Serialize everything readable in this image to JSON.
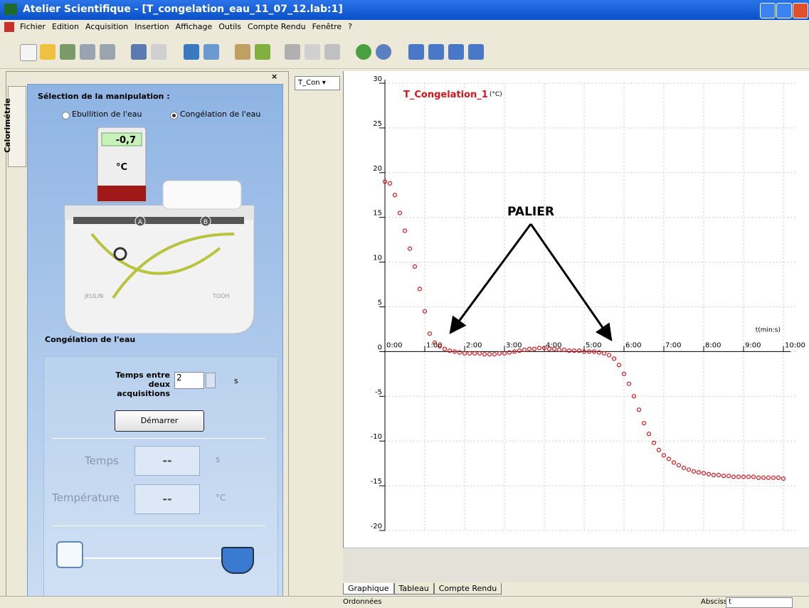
{
  "window": {
    "title": "Atelier Scientifique - [T_congelation_eau_11_07_12.lab:1]",
    "menu": [
      "Fichier",
      "Edition",
      "Acquisition",
      "Insertion",
      "Affichage",
      "Outils",
      "Compte Rendu",
      "Fenêtre",
      "?"
    ]
  },
  "left_panel": {
    "tab": "Calorimétrie",
    "heading": "Sélection de la manipulation :",
    "radios": [
      "Ebullition de l'eau",
      "Congélation de l'eau"
    ],
    "device": {
      "display": "-0,7",
      "unit": "°C",
      "port_a": "A",
      "port_b": "B",
      "brand": "JEULIN",
      "logo": "TOOH"
    },
    "section": "Congélation de l'eau",
    "interval_label": "Temps entre deux acquisitions",
    "interval_value": "2",
    "interval_unit": "s",
    "start_button": "Démarrer",
    "time_label": "Temps",
    "time_value": "--",
    "time_unit": "s",
    "temp_label": "Température",
    "temp_value": "--",
    "temp_unit": "°C"
  },
  "curve_selector": "T_Con",
  "chart_data": {
    "type": "scatter",
    "y_label": "(°C)",
    "x_label": "t(min:s)",
    "annotation": "PALIER",
    "x": [
      0,
      0.125,
      0.25,
      0.375,
      0.5,
      0.625,
      0.75,
      0.875,
      1,
      1.125,
      1.25,
      1.375,
      1.5,
      1.625,
      1.75,
      1.875,
      2,
      2.125,
      2.25,
      2.375,
      2.5,
      2.625,
      2.75,
      2.875,
      3,
      3.125,
      3.25,
      3.375,
      3.5,
      3.625,
      3.75,
      3.875,
      4,
      4.125,
      4.25,
      4.375,
      4.5,
      4.625,
      4.75,
      4.875,
      5,
      5.125,
      5.25,
      5.375,
      5.5,
      5.625,
      5.75,
      5.875,
      6,
      6.125,
      6.25,
      6.375,
      6.5,
      6.625,
      6.75,
      6.875,
      7,
      7.125,
      7.25,
      7.375,
      7.5,
      7.625,
      7.75,
      7.875,
      8,
      8.125,
      8.25,
      8.375,
      8.5,
      8.625,
      8.75,
      8.875,
      9,
      9.125,
      9.25,
      9.375,
      9.5,
      9.625,
      9.75,
      9.875,
      10
    ],
    "series": [
      {
        "name": "T_Congelation_1",
        "color": "#d8141c",
        "values": [
          19,
          18.8,
          17.5,
          15.5,
          13.5,
          11.5,
          9.5,
          7,
          4.5,
          2,
          1,
          0.6,
          0.3,
          0.1,
          0,
          -0.1,
          -0.2,
          -0.2,
          -0.2,
          -0.2,
          -0.3,
          -0.3,
          -0.3,
          -0.2,
          -0.2,
          -0.1,
          0,
          0.1,
          0.2,
          0.3,
          0.3,
          0.4,
          0.4,
          0.3,
          0.3,
          0.2,
          0.2,
          0.1,
          0.1,
          0.1,
          0,
          0,
          0,
          -0.1,
          -0.2,
          -0.4,
          -0.8,
          -1.5,
          -2.5,
          -3.6,
          -5,
          -6.5,
          -8,
          -9.2,
          -10.2,
          -11,
          -11.6,
          -12,
          -12.4,
          -12.7,
          -13,
          -13.2,
          -13.4,
          -13.5,
          -13.6,
          -13.7,
          -13.8,
          -13.8,
          -13.9,
          -13.9,
          -14,
          -14,
          -14,
          -14,
          -14,
          -14.1,
          -14.1,
          -14.1,
          -14.1,
          -14.1,
          -14.2
        ]
      }
    ],
    "xlim": [
      0,
      10
    ],
    "ylim": [
      -20,
      30
    ],
    "xticks": [
      {
        "value": 0,
        "label": "0:00"
      },
      {
        "value": 1,
        "label": "1:00"
      },
      {
        "value": 2,
        "label": "2:00"
      },
      {
        "value": 3,
        "label": "3:00"
      },
      {
        "value": 4,
        "label": "4:00"
      },
      {
        "value": 5,
        "label": "5:00"
      },
      {
        "value": 6,
        "label": "6:00"
      },
      {
        "value": 7,
        "label": "7:00"
      },
      {
        "value": 8,
        "label": "8:00"
      },
      {
        "value": 9,
        "label": "9:00"
      },
      {
        "value": 10,
        "label": "10:00"
      }
    ],
    "yticks": [
      30,
      25,
      20,
      15,
      10,
      5,
      0,
      -5,
      -10,
      -15,
      -20
    ],
    "grid": true
  },
  "bottom": {
    "tabs": [
      "Graphique",
      "Tableau",
      "Compte Rendu"
    ],
    "status_left": "Ordonnées",
    "abscissa_label": "Abscisse",
    "abscissa_value": "t"
  }
}
